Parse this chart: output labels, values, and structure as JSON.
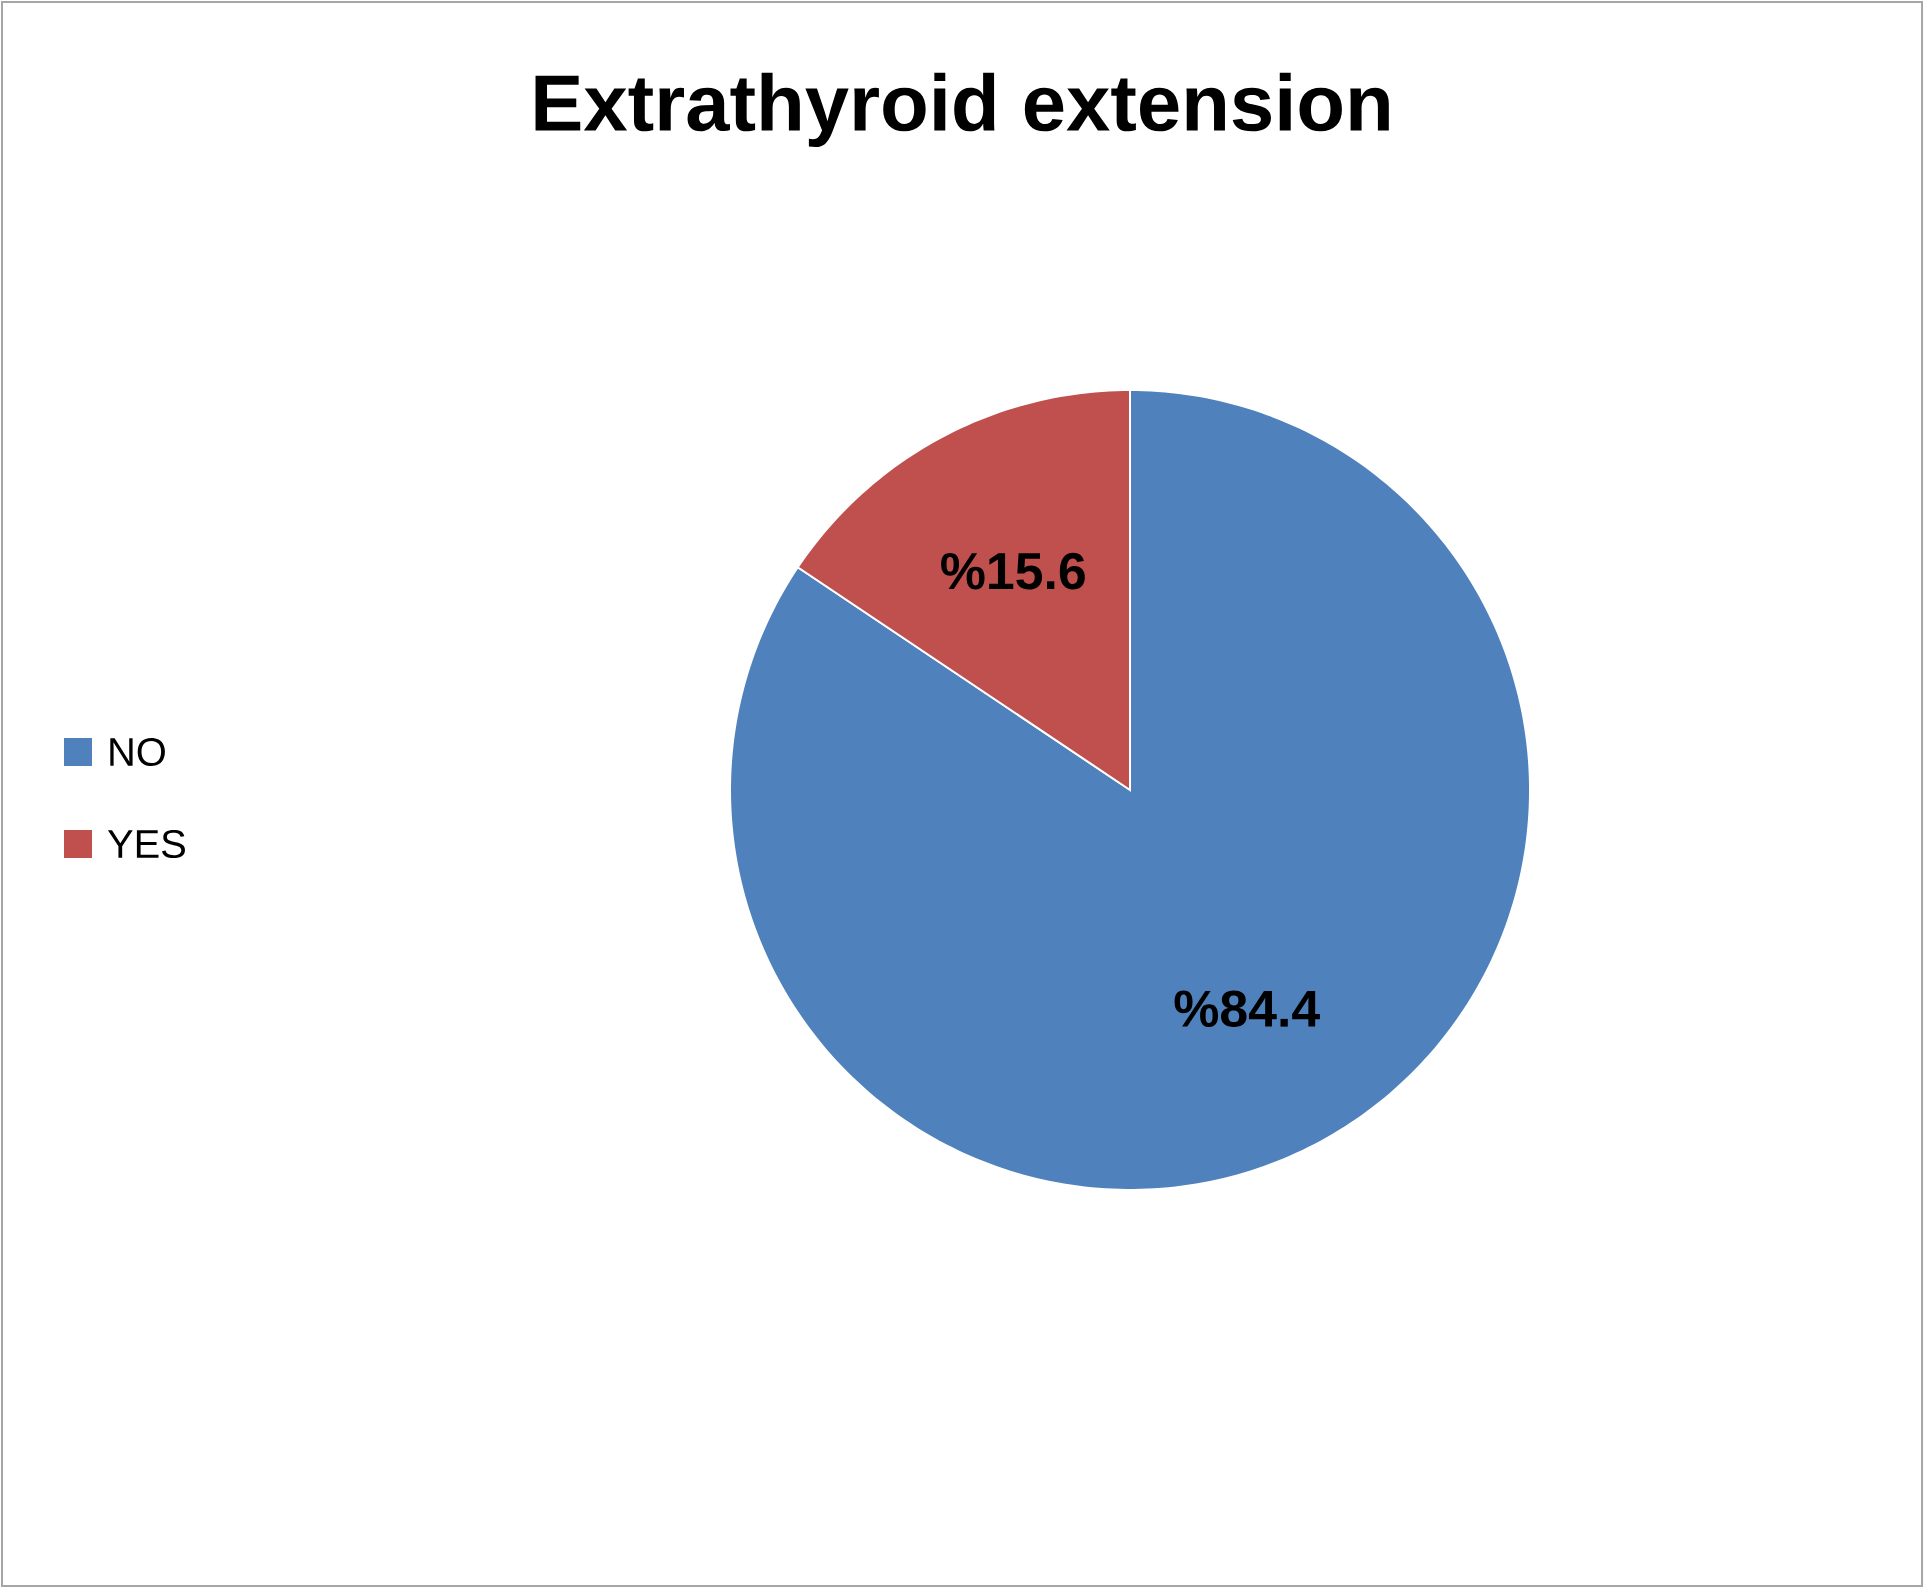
{
  "chart_data": {
    "type": "pie",
    "title": "Extrathyroid extension",
    "categories": [
      "NO",
      "YES"
    ],
    "values": [
      84.4,
      15.6
    ],
    "colors": [
      "#4f81bd",
      "#c0504d"
    ],
    "value_labels": [
      "%84.4",
      "%15.6"
    ],
    "legend": "left"
  }
}
